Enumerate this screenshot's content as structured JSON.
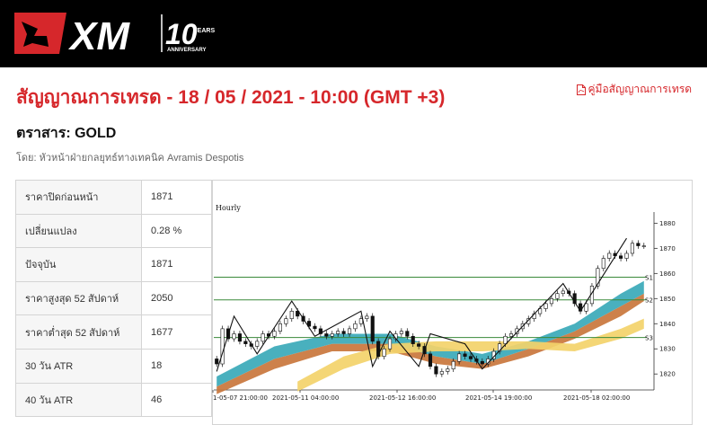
{
  "header": {
    "brand": "XM",
    "anniversary": {
      "number": "10",
      "years": "YEARS",
      "word": "ANNIVERSARY"
    }
  },
  "page": {
    "title": "สัญญาณการเทรด - 18 / 05 / 2021 - 10:00 (GMT +3)",
    "guide_link": "คู่มือสัญญาณการเทรด",
    "instrument": "ตราสาร: GOLD",
    "byline": "โดย: หัวหน้าฝ่ายกลยุทธ์ทางเทคนิค Avramis Despotis"
  },
  "stats": [
    {
      "label": "ราคาปิดก่อนหน้า",
      "value": "1871"
    },
    {
      "label": "เปลี่ยนแปลง",
      "value": "0.28 %"
    },
    {
      "label": "ปัจจุบัน",
      "value": "1871"
    },
    {
      "label": "ราคาสูงสุด 52 สัปดาห์",
      "value": "2050"
    },
    {
      "label": "ราคาต่ำสุด 52 สัปดาห์",
      "value": "1677"
    },
    {
      "label": "30 วัน ATR",
      "value": "18"
    },
    {
      "label": "40 วัน ATR",
      "value": "46"
    }
  ],
  "chart_data": {
    "type": "candlestick",
    "timeframe_label": "Hourly",
    "y_ticks": [
      1820,
      1830,
      1840,
      1850,
      1860,
      1870,
      1880
    ],
    "ylim": [
      1814,
      1883
    ],
    "x_ticks": [
      "1-05-07 21:00:00",
      "2021-05-11 04:00:00",
      "2021-05-12 16:00:00",
      "2021-05-14 19:00:00",
      "2021-05-18 02:00:00"
    ],
    "levels": [
      {
        "name": "S1",
        "value": 1858.5
      },
      {
        "name": "S2",
        "value": 1849.5
      },
      {
        "name": "S3",
        "value": 1834.5
      }
    ],
    "closes": [
      1824,
      1838,
      1834,
      1836,
      1833,
      1832,
      1831,
      1833,
      1836,
      1835,
      1837,
      1840,
      1842,
      1845,
      1843,
      1841,
      1839,
      1838,
      1836,
      1835,
      1836,
      1837,
      1836,
      1838,
      1840,
      1842,
      1843,
      1833,
      1827,
      1830,
      1834,
      1836,
      1837,
      1835,
      1832,
      1831,
      1828,
      1823,
      1820,
      1821,
      1822,
      1825,
      1828,
      1827,
      1826,
      1825,
      1824,
      1826,
      1829,
      1832,
      1835,
      1836,
      1838,
      1840,
      1842,
      1844,
      1846,
      1848,
      1850,
      1852,
      1853,
      1852,
      1848,
      1845,
      1848,
      1855,
      1862,
      1866,
      1868,
      1867,
      1866,
      1868,
      1872,
      1871,
      1871
    ],
    "zigzag": [
      {
        "i": 0,
        "v": 1821
      },
      {
        "i": 3,
        "v": 1843
      },
      {
        "i": 7,
        "v": 1828
      },
      {
        "i": 13,
        "v": 1849
      },
      {
        "i": 17,
        "v": 1835
      },
      {
        "i": 25,
        "v": 1845
      },
      {
        "i": 27,
        "v": 1823
      },
      {
        "i": 30,
        "v": 1837
      },
      {
        "i": 35,
        "v": 1823
      },
      {
        "i": 37,
        "v": 1836
      },
      {
        "i": 43,
        "v": 1832
      },
      {
        "i": 46,
        "v": 1822
      },
      {
        "i": 60,
        "v": 1856
      },
      {
        "i": 63,
        "v": 1845
      },
      {
        "i": 71,
        "v": 1874
      }
    ],
    "bands": {
      "teal": [
        [
          0,
          1819,
          1815
        ],
        [
          10,
          1831,
          1826
        ],
        [
          20,
          1836,
          1832
        ],
        [
          30,
          1836,
          1832
        ],
        [
          38,
          1831,
          1827
        ],
        [
          46,
          1828,
          1824
        ],
        [
          54,
          1833,
          1830
        ],
        [
          62,
          1840,
          1837
        ],
        [
          70,
          1852,
          1847
        ],
        [
          74,
          1857,
          1852
        ]
      ],
      "orange": [
        [
          0,
          1815,
          1812
        ],
        [
          10,
          1826,
          1822
        ],
        [
          20,
          1832,
          1829
        ],
        [
          30,
          1832,
          1829
        ],
        [
          38,
          1827,
          1824
        ],
        [
          46,
          1824,
          1822
        ],
        [
          54,
          1830,
          1827
        ],
        [
          62,
          1837,
          1834
        ],
        [
          70,
          1847,
          1843
        ],
        [
          74,
          1852,
          1849
        ]
      ],
      "yellow": [
        [
          14,
          1817,
          1813
        ],
        [
          22,
          1827,
          1822
        ],
        [
          30,
          1832,
          1828
        ],
        [
          38,
          1833,
          1829
        ],
        [
          46,
          1833,
          1829
        ],
        [
          54,
          1833,
          1830
        ],
        [
          62,
          1832,
          1829
        ],
        [
          70,
          1838,
          1834
        ],
        [
          74,
          1842,
          1838
        ]
      ]
    }
  },
  "colors": {
    "brand_red": "#d6272b",
    "header_bg": "#000000",
    "support_line": "#3a8a3a",
    "band_teal": "#3aa9b9",
    "band_orange": "#c9763c",
    "band_yellow": "#f3d36a"
  }
}
